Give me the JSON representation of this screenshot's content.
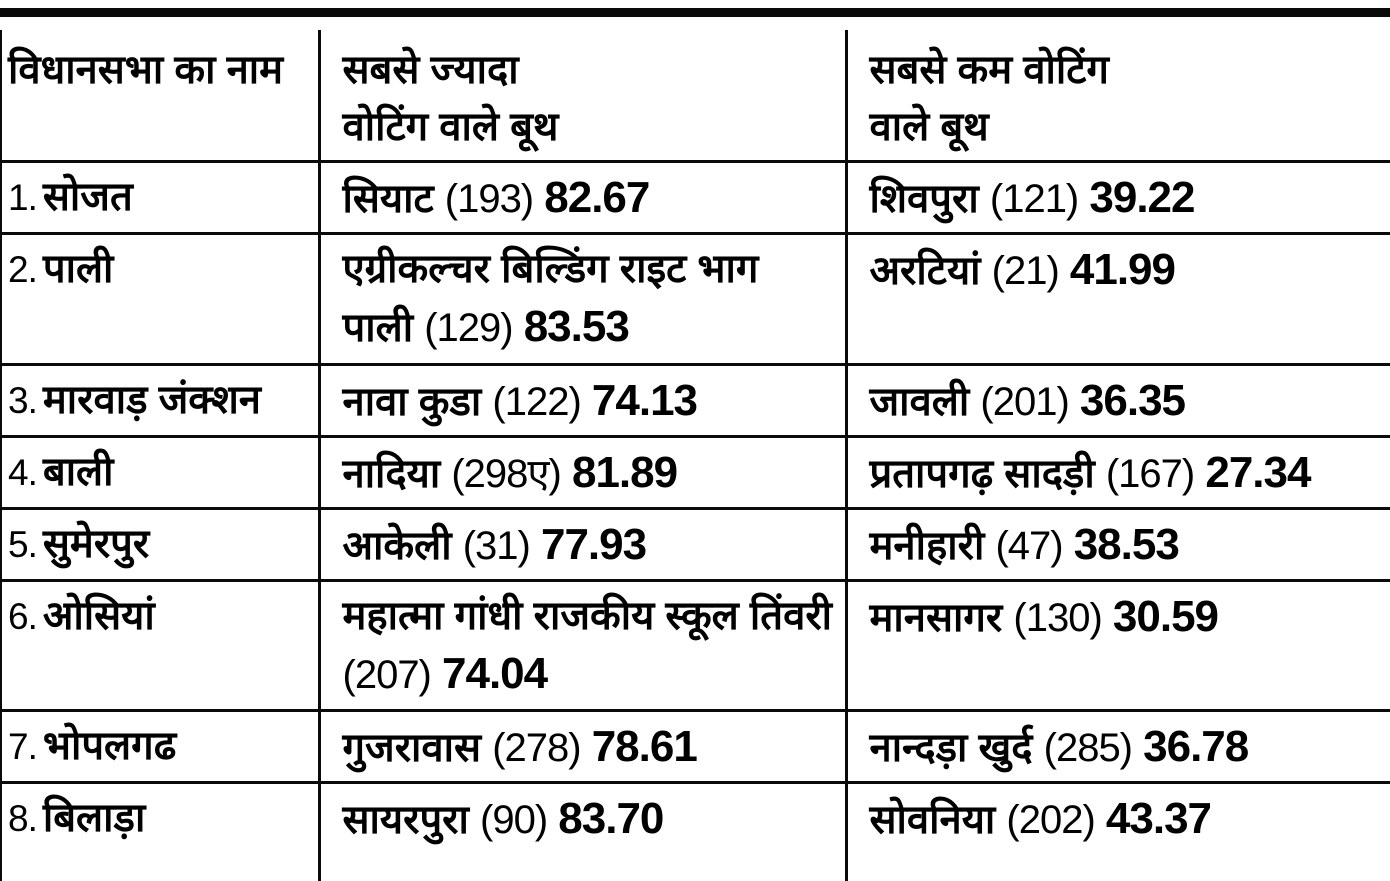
{
  "colors": {
    "text": "#000000",
    "background": "#ffffff",
    "rule": "#0a0a0a"
  },
  "table": {
    "columns": [
      {
        "label": "विधानसभा का नाम",
        "line1": "विधानसभा का नाम",
        "line2": ""
      },
      {
        "label": "सबसे ज्यादा वोटिंग वाले बूथ",
        "line1": "सबसे ज्यादा",
        "line2": "वोटिंग वाले बूथ"
      },
      {
        "label": "सबसे कम वोटिंग वाले बूथ",
        "line1": "सबसे कम वोटिंग",
        "line2": "वाले बूथ"
      }
    ],
    "rows": [
      {
        "num": "1.",
        "name": "सोजत",
        "top_booth": "सियाट",
        "top_no": "(193)",
        "top_pct": "82.67",
        "low_booth": "शिवपुरा",
        "low_no": "(121)",
        "low_pct": "39.22"
      },
      {
        "num": "2.",
        "name": "पाली",
        "top_booth": "एग्रीकल्चर बिल्डिंग राइट भाग पाली",
        "top_no": "(129)",
        "top_pct": "83.53",
        "low_booth": "अरटियां",
        "low_no": "(21)",
        "low_pct": "41.99"
      },
      {
        "num": "3.",
        "name": "मारवाड़ जंक्शन",
        "top_booth": "नावा कुडा",
        "top_no": "(122)",
        "top_pct": "74.13",
        "low_booth": "जावली",
        "low_no": "(201)",
        "low_pct": "36.35"
      },
      {
        "num": "4.",
        "name": "बाली",
        "top_booth": "नादिया",
        "top_no": "(298ए)",
        "top_pct": "81.89",
        "low_booth": "प्रतापगढ़ सादड़ी",
        "low_no": "(167)",
        "low_pct": "27.34"
      },
      {
        "num": "5.",
        "name": "सुमेरपुर",
        "top_booth": "आकेली",
        "top_no": "(31)",
        "top_pct": "77.93",
        "low_booth": "मनीहारी",
        "low_no": "(47)",
        "low_pct": "38.53"
      },
      {
        "num": "6.",
        "name": "ओसियां",
        "top_booth": "महात्मा गांधी राजकीय स्कूल तिंवरी",
        "top_no": "(207)",
        "top_pct": "74.04",
        "low_booth": "मानसागर",
        "low_no": "(130)",
        "low_pct": "30.59"
      },
      {
        "num": "7.",
        "name": "भोपलगढ",
        "top_booth": "गुजरावास",
        "top_no": "(278)",
        "top_pct": "78.61",
        "low_booth": "नान्दड़ा खुर्द",
        "low_no": "(285)",
        "low_pct": "36.78"
      },
      {
        "num": "8.",
        "name": "बिलाड़ा",
        "top_booth": "सायरपुरा",
        "top_no": "(90)",
        "top_pct": "83.70",
        "low_booth": "सोवनिया",
        "low_no": "(202)",
        "low_pct": "43.37"
      }
    ]
  },
  "chart_data": {
    "type": "table",
    "title": "",
    "columns": [
      "विधानसभा का नाम",
      "सबसे ज्यादा वोटिंग वाले बूथ",
      "सबसे कम वोटिंग वाले बूथ"
    ],
    "rows": [
      [
        "1. सोजत",
        "सियाट (193) 82.67",
        "शिवपुरा (121) 39.22"
      ],
      [
        "2. पाली",
        "एग्रीकल्चर बिल्डिंग राइट भाग पाली (129) 83.53",
        "अरटियां (21) 41.99"
      ],
      [
        "3. मारवाड़ जंक्शन",
        "नावा कुडा (122) 74.13",
        "जावली (201) 36.35"
      ],
      [
        "4. बाली",
        "नादिया (298ए) 81.89",
        "प्रतापगढ़ सादड़ी (167) 27.34"
      ],
      [
        "5. सुमेरपुर",
        "आकेली (31) 77.93",
        "मनीहारी (47) 38.53"
      ],
      [
        "6. ओसियां",
        "महात्मा गांधी राजकीय स्कूल तिंवरी (207) 74.04",
        "मानसागर (130) 30.59"
      ],
      [
        "7. भोपलगढ",
        "गुजरावास (278) 78.61",
        "नान्दड़ा खुर्द (285) 36.78"
      ],
      [
        "8. बिलाड़ा",
        "सायरपुरा (90) 83.70",
        "सोवनिया (202) 43.37"
      ]
    ],
    "highest_pct_values": [
      82.67,
      83.53,
      74.13,
      81.89,
      77.93,
      74.04,
      78.61,
      83.7
    ],
    "lowest_pct_values": [
      39.22,
      41.99,
      36.35,
      27.34,
      38.53,
      30.59,
      36.78,
      43.37
    ]
  }
}
